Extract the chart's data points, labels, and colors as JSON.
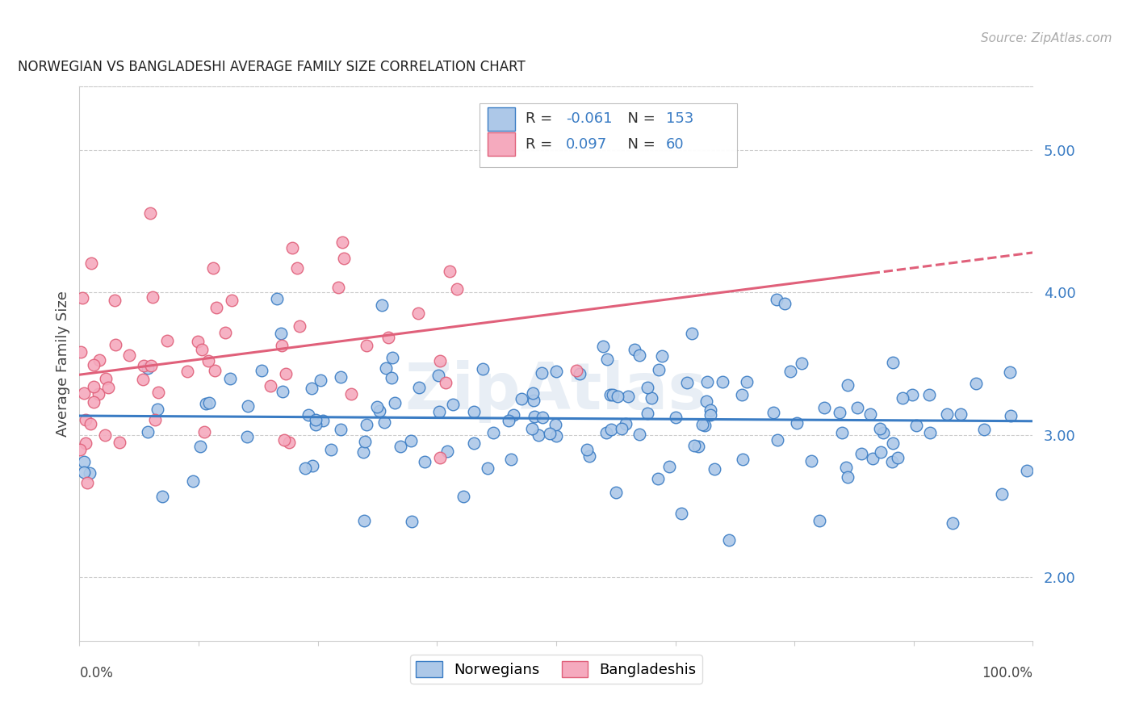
{
  "title": "NORWEGIAN VS BANGLADESHI AVERAGE FAMILY SIZE CORRELATION CHART",
  "source": "Source: ZipAtlas.com",
  "ylabel": "Average Family Size",
  "yticks": [
    2.0,
    3.0,
    4.0,
    5.0
  ],
  "ylim": [
    1.55,
    5.45
  ],
  "xlim": [
    0.0,
    1.0
  ],
  "legend_labels": [
    "Norwegians",
    "Bangladeshis"
  ],
  "legend_R": [
    "-0.061",
    "0.097"
  ],
  "legend_N": [
    "153",
    "60"
  ],
  "norwegian_color": "#adc8e8",
  "bangladeshi_color": "#f5aabe",
  "norwegian_line_color": "#3a7cc4",
  "bangladeshi_line_color": "#e0607a",
  "background_color": "#ffffff",
  "grid_color": "#cccccc",
  "N_norwegian": 153,
  "N_bangladeshi": 60,
  "watermark_text": "ZipAtlas",
  "watermark_color": "#e8eef5",
  "title_color": "#222222",
  "source_color": "#aaaaaa",
  "label_color": "#444444",
  "tick_label_color": "#3a7cc4"
}
